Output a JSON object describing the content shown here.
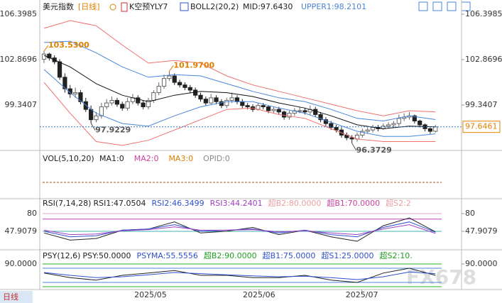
{
  "header": {
    "symbol": "美元指数",
    "period": "[日线]",
    "indicator": "K空预YLY7",
    "boll": "BOLL2(20,2)",
    "mid": "MID:97.6430",
    "upper1": "UPPER1:98.2101"
  },
  "vol_panel": {
    "title": "VOL(5,10,20)",
    "items": [
      {
        "text": "MA1:0",
        "color": "#222"
      },
      {
        "text": "MA2:0",
        "color": "#d040a0"
      },
      {
        "text": "MA3:0",
        "color": "#e08000"
      },
      {
        "text": "OPID:0",
        "color": "#888"
      }
    ]
  },
  "footer": {
    "period_button": "日线",
    "watermark": "FX678"
  },
  "chart_data": [
    {
      "type": "candlestick",
      "ylim": [
        95.92,
        106.84
      ],
      "yticks": [
        106.3985,
        102.8696,
        99.3407
      ],
      "current": 97.6461,
      "xticks": [
        {
          "value": 20.4,
          "label": "2025/05"
        },
        {
          "value": 41.2,
          "label": "2025/06"
        },
        {
          "value": 60.9,
          "label": "2025/07"
        }
      ],
      "up_color": "#666666",
      "down_color": "#222222",
      "open": [
        102.9,
        103.3,
        103.0,
        102.7,
        101.5,
        100.6,
        100.2,
        100.3,
        99.6,
        99.0,
        98.2,
        98.5,
        99.2,
        99.5,
        99.7,
        99.4,
        99.1,
        99.6,
        99.9,
        99.5,
        99.2,
        99.7,
        100.3,
        100.8,
        101.4,
        101.6,
        101.1,
        100.9,
        100.7,
        100.5,
        100.1,
        99.8,
        99.5,
        99.9,
        99.6,
        99.3,
        99.7,
        99.9,
        99.6,
        99.3,
        99.2,
        99.0,
        99.3,
        99.2,
        98.9,
        99.0,
        98.8,
        98.4,
        98.7,
        98.9,
        98.9,
        98.8,
        99.0,
        98.6,
        98.2,
        97.9,
        97.6,
        97.4,
        97.0,
        96.8,
        96.7,
        97.0,
        97.3,
        97.4,
        97.6,
        97.5,
        97.7,
        97.8,
        97.9,
        98.3,
        98.4,
        98.5,
        98.1,
        97.8,
        97.5,
        97.3
      ],
      "high": [
        103.53,
        103.4,
        103.2,
        102.9,
        101.8,
        100.9,
        100.7,
        100.5,
        99.9,
        99.3,
        98.8,
        99.5,
        99.8,
        100.0,
        99.9,
        99.6,
        99.9,
        100.2,
        100.1,
        99.7,
        99.9,
        100.5,
        101.1,
        101.7,
        101.97,
        101.8,
        101.3,
        101.1,
        100.9,
        100.7,
        100.3,
        100.0,
        100.2,
        100.1,
        99.8,
        99.9,
        100.3,
        100.1,
        99.8,
        99.5,
        99.4,
        99.5,
        99.5,
        99.3,
        99.2,
        99.2,
        98.9,
        98.9,
        99.1,
        99.2,
        99.1,
        99.3,
        99.2,
        98.8,
        98.4,
        98.1,
        97.8,
        97.6,
        97.2,
        97.0,
        97.2,
        97.5,
        97.6,
        97.8,
        97.8,
        97.9,
        98.0,
        98.1,
        98.6,
        98.7,
        98.8,
        98.6,
        98.2,
        97.9,
        97.6,
        97.8
      ],
      "low": [
        102.6,
        102.8,
        102.5,
        101.3,
        100.3,
        99.9,
        99.9,
        99.4,
        98.8,
        97.9229,
        98.0,
        98.3,
        99.0,
        99.3,
        99.2,
        98.9,
        98.9,
        99.4,
        99.3,
        99.0,
        99.0,
        99.5,
        100.1,
        100.6,
        101.2,
        100.9,
        100.7,
        100.5,
        100.3,
        99.9,
        99.6,
        99.3,
        99.4,
        99.4,
        99.1,
        99.1,
        99.5,
        99.4,
        99.1,
        99.0,
        98.8,
        98.9,
        99.0,
        98.7,
        98.7,
        98.6,
        98.2,
        98.2,
        98.5,
        98.7,
        98.6,
        98.6,
        98.4,
        98.0,
        97.7,
        97.4,
        97.2,
        96.8,
        96.6,
        96.3729,
        96.5,
        96.8,
        97.1,
        97.2,
        97.3,
        97.4,
        97.5,
        97.6,
        97.7,
        98.1,
        98.2,
        97.9,
        97.6,
        97.3,
        97.1,
        97.2
      ],
      "close": [
        103.3,
        103.0,
        102.7,
        101.5,
        100.6,
        100.2,
        100.3,
        99.6,
        99.0,
        98.2,
        98.5,
        99.2,
        99.5,
        99.7,
        99.4,
        99.1,
        99.6,
        99.9,
        99.5,
        99.2,
        99.7,
        100.3,
        100.8,
        101.4,
        101.6,
        101.1,
        100.9,
        100.7,
        100.5,
        100.1,
        99.8,
        99.5,
        99.9,
        99.6,
        99.3,
        99.7,
        99.9,
        99.6,
        99.3,
        99.2,
        99.0,
        99.3,
        99.2,
        98.9,
        99.0,
        98.8,
        98.4,
        98.7,
        98.9,
        98.9,
        98.8,
        99.0,
        98.6,
        98.2,
        97.9,
        97.6,
        97.4,
        97.0,
        96.8,
        96.7,
        97.0,
        97.3,
        97.4,
        97.6,
        97.5,
        97.7,
        97.8,
        97.9,
        98.3,
        98.4,
        98.5,
        98.1,
        97.8,
        97.5,
        97.3,
        97.6461
      ],
      "series": [
        {
          "color": "#f07070",
          "x": [
            0,
            5,
            10,
            15,
            20,
            25,
            30,
            35,
            40,
            45,
            50,
            55,
            60,
            65,
            70,
            75
          ],
          "values": [
            105.3,
            105.9,
            105.5,
            104.0,
            102.6,
            102.8,
            102.6,
            101.6,
            100.9,
            100.4,
            99.9,
            99.4,
            98.9,
            98.5,
            98.9,
            98.8
          ]
        },
        {
          "color": "#4a86d8",
          "x": [
            0,
            5,
            10,
            15,
            20,
            25,
            30,
            35,
            40,
            45,
            50,
            55,
            60,
            65,
            70,
            75
          ],
          "values": [
            104.2,
            104.3,
            103.4,
            102.3,
            101.5,
            101.7,
            101.6,
            101.0,
            100.4,
            99.9,
            99.6,
            99.0,
            98.3,
            98.1,
            98.5,
            98.2101
          ]
        },
        {
          "color": "#111111",
          "x": [
            0,
            5,
            10,
            15,
            20,
            25,
            30,
            35,
            40,
            45,
            50,
            55,
            60,
            65,
            70,
            75
          ],
          "values": [
            103.2,
            102.3,
            101.0,
            100.1,
            99.6,
            100.1,
            100.4,
            100.3,
            100.0,
            99.5,
            99.1,
            98.5,
            97.8,
            97.5,
            97.7,
            97.643
          ]
        },
        {
          "color": "#4a86d8",
          "x": [
            0,
            5,
            10,
            15,
            20,
            25,
            30,
            35,
            40,
            45,
            50,
            55,
            60,
            65,
            70,
            75
          ],
          "values": [
            102.1,
            100.3,
            98.7,
            97.9,
            97.7,
            98.5,
            99.2,
            99.6,
            99.6,
            99.1,
            98.7,
            98.0,
            97.3,
            96.9,
            96.9,
            97.1
          ]
        },
        {
          "color": "#f07070",
          "x": [
            0,
            5,
            10,
            15,
            20,
            25,
            30,
            35,
            40,
            45,
            50,
            55,
            60,
            65,
            70,
            75
          ],
          "values": [
            101.1,
            98.7,
            96.5,
            96.2,
            96.6,
            97.4,
            98.2,
            99.0,
            99.1,
            98.6,
            98.3,
            97.5,
            96.7,
            96.5,
            96.5,
            96.5
          ]
        }
      ],
      "annotations": [
        {
          "text": "103.5300",
          "x": 0,
          "y": 103.53,
          "color": "#e08000"
        },
        {
          "text": "97.9229",
          "x": 9,
          "y": 97.9229,
          "color": "#555555"
        },
        {
          "text": "101.9700",
          "x": 24,
          "y": 101.97,
          "color": "#e08000"
        },
        {
          "text": "96.3729",
          "x": 59,
          "y": 96.3729,
          "color": "#555555"
        }
      ]
    },
    {
      "type": "line",
      "title": "RSI(7,14,28)",
      "ylim": [
        19.7,
        94.1
      ],
      "yticks": [
        80,
        {
          "value": 47.9079,
          "label": "47.9079"
        }
      ],
      "header_items": [
        {
          "text": "RSI1:47.0504",
          "color": "#222"
        },
        {
          "text": "RSI2:46.3499",
          "color": "#3050d0"
        },
        {
          "text": "RSI3:44.2401",
          "color": "#a040c0"
        },
        {
          "text": "超B2:80.0000",
          "color": "#e8a0a0"
        },
        {
          "text": "超B1:70.0000",
          "color": "#d040a0"
        },
        {
          "text": "超S2:2",
          "color": "#e8a0a0"
        }
      ],
      "ref_lines": [
        {
          "value": 80,
          "color": "#e8a0c8"
        },
        {
          "value": 70,
          "color": "#c040c0"
        },
        {
          "value": 47.9079,
          "color": "#40b0b0"
        }
      ],
      "series": [
        {
          "color": "#222222",
          "x": [
            0,
            5,
            10,
            15,
            20,
            25,
            30,
            35,
            40,
            45,
            50,
            55,
            60,
            65,
            70,
            75
          ],
          "values": [
            45,
            32,
            35,
            50,
            52,
            65,
            45,
            48,
            55,
            42,
            50,
            38,
            30,
            58,
            72,
            47.0504
          ]
        },
        {
          "color": "#3050d0",
          "x": [
            0,
            5,
            10,
            15,
            20,
            25,
            30,
            35,
            40,
            45,
            50,
            55,
            60,
            65,
            70,
            75
          ],
          "values": [
            48,
            38,
            40,
            50,
            52,
            60,
            48,
            50,
            52,
            45,
            50,
            42,
            38,
            55,
            65,
            46.3499
          ]
        },
        {
          "color": "#a040c0",
          "x": [
            0,
            5,
            10,
            15,
            20,
            25,
            30,
            35,
            40,
            45,
            50,
            55,
            60,
            65,
            70,
            75
          ],
          "values": [
            50,
            42,
            43,
            49,
            51,
            56,
            50,
            50,
            51,
            47,
            49,
            45,
            42,
            52,
            60,
            44.2401
          ]
        }
      ]
    },
    {
      "type": "line",
      "title": "PSY(12,6)",
      "ylim": [
        0,
        105
      ],
      "yticks": [
        {
          "value": 90,
          "label": "90.0000"
        }
      ],
      "header_items": [
        {
          "text": "PSY:50.0000",
          "color": "#222"
        },
        {
          "text": "PSYMA:55.5556",
          "color": "#3050d0"
        },
        {
          "text": "超B2:90.0000",
          "color": "#20a020"
        },
        {
          "text": "超B1:75.0000",
          "color": "#3050d0"
        },
        {
          "text": "超S1:25.0000",
          "color": "#3050d0"
        },
        {
          "text": "超S2:10.",
          "color": "#20a020"
        }
      ],
      "ref_lines": [
        {
          "value": 90,
          "color": "#20b020"
        },
        {
          "value": 75,
          "color": "#4a86d8"
        },
        {
          "value": 25,
          "color": "#4a86d8"
        },
        {
          "value": 10,
          "color": "#20b020"
        }
      ],
      "series": [
        {
          "color": "#222222",
          "x": [
            0,
            5,
            10,
            15,
            20,
            25,
            30,
            35,
            40,
            45,
            50,
            55,
            60,
            65,
            70,
            75
          ],
          "values": [
            58,
            42,
            33,
            50,
            58,
            67,
            50,
            50,
            42,
            42,
            50,
            33,
            25,
            58,
            75,
            50
          ]
        },
        {
          "color": "#3050d0",
          "x": [
            0,
            5,
            10,
            15,
            20,
            25,
            30,
            35,
            40,
            45,
            50,
            55,
            60,
            65,
            70,
            75
          ],
          "values": [
            60,
            50,
            42,
            45,
            52,
            60,
            56,
            52,
            48,
            45,
            47,
            42,
            35,
            45,
            62,
            55.5556
          ]
        }
      ]
    }
  ]
}
